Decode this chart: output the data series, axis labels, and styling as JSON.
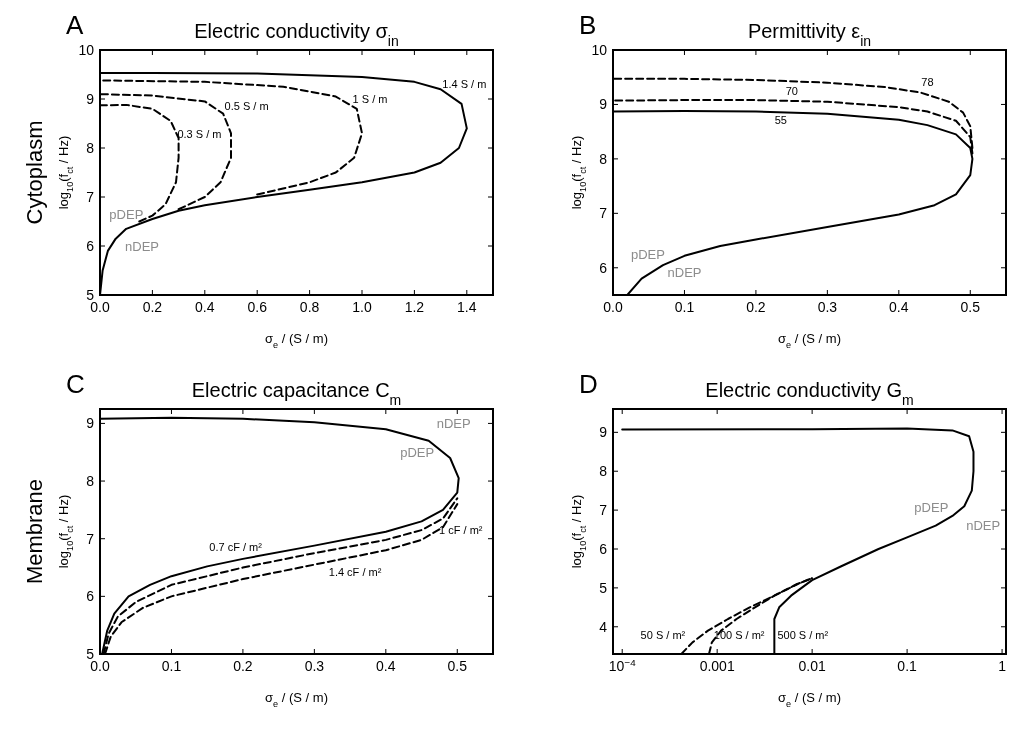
{
  "chart_data": [
    {
      "type": "line",
      "title": "Electric conductivity σ$_{in}$",
      "xlabel": "σ$_{e}$ / (S / m)",
      "ylabel": "log$_{10}$(f$_{ct}$ / Hz)",
      "xlim": [
        0,
        1.5
      ],
      "ylim": [
        5,
        10
      ],
      "xticks": [
        {
          "value": 0,
          "label": "0.0"
        },
        {
          "value": 0.2,
          "label": "0.2"
        },
        {
          "value": 0.4,
          "label": "0.4"
        },
        {
          "value": 0.6,
          "label": "0.6"
        },
        {
          "value": 0.8,
          "label": "0.8"
        },
        {
          "value": 1,
          "label": "1.0"
        },
        {
          "value": 1.2,
          "label": "1.2"
        },
        {
          "value": 1.4,
          "label": "1.4"
        }
      ],
      "yticks": [
        5,
        6,
        7,
        8,
        9,
        10
      ],
      "series": [
        {
          "name": "1.4 S / m",
          "color": "#000000",
          "line_style": "solid",
          "x": [
            0,
            0.01,
            0.03,
            0.06,
            0.1,
            0.2,
            0.3,
            0.4,
            0.6,
            0.8,
            1.0,
            1.2,
            1.3,
            1.37,
            1.4,
            1.38,
            1.3,
            1.2,
            1.0,
            0.6,
            0.2,
            0
          ],
          "values": [
            5,
            5.5,
            5.9,
            6.15,
            6.35,
            6.55,
            6.72,
            6.83,
            7.0,
            7.15,
            7.3,
            7.5,
            7.7,
            8.0,
            8.4,
            8.9,
            9.2,
            9.35,
            9.45,
            9.52,
            9.53,
            9.53
          ]
        },
        {
          "name": "1 S / m",
          "color": "#000000",
          "line_style": "dashed",
          "x": [
            0.6,
            0.8,
            0.9,
            0.97,
            1.0,
            0.98,
            0.9,
            0.7,
            0.4,
            0
          ],
          "values": [
            7.05,
            7.3,
            7.5,
            7.8,
            8.3,
            8.8,
            9.05,
            9.25,
            9.35,
            9.38
          ]
        },
        {
          "name": "0.5 S / m",
          "color": "#000000",
          "line_style": "dashed",
          "x": [
            0.3,
            0.4,
            0.46,
            0.5,
            0.5,
            0.47,
            0.4,
            0.2,
            0
          ],
          "values": [
            6.75,
            7.0,
            7.3,
            7.8,
            8.3,
            8.7,
            8.95,
            9.07,
            9.1
          ]
        },
        {
          "name": "0.3 S / m",
          "color": "#000000",
          "line_style": "dashed",
          "x": [
            0.15,
            0.2,
            0.25,
            0.29,
            0.3,
            0.3,
            0.27,
            0.2,
            0.1,
            0
          ],
          "values": [
            6.5,
            6.62,
            6.85,
            7.3,
            7.8,
            8.2,
            8.55,
            8.8,
            8.88,
            8.87
          ]
        }
      ],
      "annotations": [
        "A",
        "Cytoplasm",
        "pDEP",
        "nDEP"
      ]
    },
    {
      "type": "line",
      "title": "Permittivity ε$_{in}$",
      "xlabel": "σ$_{e}$ / (S / m)",
      "ylabel": "log$_{10}$(f$_{ct}$ / Hz)",
      "xlim": [
        0,
        0.55
      ],
      "ylim": [
        5.5,
        10
      ],
      "xticks": [
        {
          "value": 0,
          "label": "0.0"
        },
        0.1,
        0.2,
        0.3,
        0.4,
        0.5
      ],
      "yticks": [
        6,
        7,
        8,
        9,
        10
      ],
      "series": [
        {
          "name": "55",
          "color": "#000000",
          "line_style": "solid",
          "x": [
            0.02,
            0.04,
            0.07,
            0.1,
            0.15,
            0.2,
            0.3,
            0.4,
            0.45,
            0.48,
            0.5,
            0.503,
            0.5,
            0.48,
            0.44,
            0.4,
            0.3,
            0.2,
            0.1,
            0
          ],
          "values": [
            5.5,
            5.8,
            6.05,
            6.22,
            6.4,
            6.52,
            6.75,
            6.98,
            7.15,
            7.35,
            7.7,
            8.0,
            8.2,
            8.45,
            8.62,
            8.72,
            8.83,
            8.87,
            8.88,
            8.87
          ]
        },
        {
          "name": "70",
          "color": "#000000",
          "line_style": "dashed",
          "x": [
            0.503,
            0.5,
            0.48,
            0.44,
            0.4,
            0.3,
            0.2,
            0.1,
            0
          ],
          "values": [
            8.1,
            8.4,
            8.7,
            8.87,
            8.95,
            9.05,
            9.08,
            9.08,
            9.07
          ]
        },
        {
          "name": "78",
          "color": "#000000",
          "line_style": "dashed",
          "x": [
            0.503,
            0.5,
            0.49,
            0.47,
            0.43,
            0.38,
            0.3,
            0.2,
            0.1,
            0
          ],
          "values": [
            8.2,
            8.6,
            8.85,
            9.05,
            9.22,
            9.32,
            9.4,
            9.45,
            9.47,
            9.47
          ]
        }
      ],
      "annotations": [
        "B",
        "pDEP",
        "nDEP"
      ]
    },
    {
      "type": "line",
      "title": "Electric capacitance C$_{m}$",
      "xlabel": "σ$_{e}$ / (S / m)",
      "ylabel": "log$_{10}$(f$_{ct}$ / Hz)",
      "xlim": [
        0,
        0.55
      ],
      "ylim": [
        5,
        9.25
      ],
      "xticks": [
        {
          "value": 0,
          "label": "0.0"
        },
        0.1,
        0.2,
        0.3,
        0.4,
        0.5
      ],
      "yticks": [
        5,
        6,
        7,
        8,
        9
      ],
      "series": [
        {
          "name": "0.7 cF / m²",
          "color": "#000000",
          "line_style": "solid",
          "x": [
            0.003,
            0.01,
            0.02,
            0.04,
            0.07,
            0.1,
            0.15,
            0.2,
            0.3,
            0.4,
            0.45,
            0.48,
            0.5,
            0.502,
            0.49,
            0.46,
            0.4,
            0.3,
            0.2,
            0.1,
            0
          ],
          "values": [
            5,
            5.4,
            5.7,
            6.0,
            6.2,
            6.35,
            6.52,
            6.65,
            6.88,
            7.12,
            7.3,
            7.5,
            7.8,
            8.05,
            8.4,
            8.7,
            8.9,
            9.02,
            9.08,
            9.1,
            9.08
          ]
        },
        {
          "name": "1 cF / m²",
          "color": "#000000",
          "line_style": "dashed",
          "x": [
            0.005,
            0.012,
            0.025,
            0.05,
            0.1,
            0.2,
            0.3,
            0.4,
            0.45,
            0.48,
            0.5
          ],
          "values": [
            5,
            5.35,
            5.65,
            5.9,
            6.2,
            6.5,
            6.75,
            6.98,
            7.15,
            7.35,
            7.7
          ]
        },
        {
          "name": "1.4  cF / m²",
          "color": "#000000",
          "line_style": "dashed",
          "x": [
            0.007,
            0.015,
            0.03,
            0.06,
            0.1,
            0.2,
            0.3,
            0.4,
            0.45,
            0.48,
            0.5
          ],
          "values": [
            5,
            5.3,
            5.55,
            5.8,
            6.0,
            6.3,
            6.55,
            6.8,
            6.98,
            7.2,
            7.6
          ]
        }
      ],
      "annotations": [
        "C",
        "Membrane",
        "nDEP",
        "pDEP"
      ]
    },
    {
      "type": "line",
      "title": "Electric conductivity G$_{m}$",
      "xlabel": "σ$_{e}$ / (S / m)",
      "ylabel": "log$_{10}$(f$_{ct}$ / Hz)",
      "log": "x",
      "xlim": [
        8e-05,
        1.1
      ],
      "ylim": [
        3.3,
        9.6
      ],
      "xticks": [
        {
          "value": 0.0001,
          "label": "10$^{−4}$"
        },
        0.001,
        0.01,
        0.1,
        1
      ],
      "yticks": [
        4,
        5,
        6,
        7,
        8,
        9
      ],
      "series": [
        {
          "name": "500 S / m²",
          "color": "#000000",
          "line_style": "solid",
          "x": [
            0.004,
            0.004,
            0.0045,
            0.006,
            0.01,
            0.02,
            0.05,
            0.1,
            0.2,
            0.3,
            0.4,
            0.48,
            0.5,
            0.5,
            0.45,
            0.3,
            0.1,
            0.01,
            0.0001
          ],
          "values": [
            3.3,
            4.2,
            4.5,
            4.8,
            5.2,
            5.55,
            6.0,
            6.3,
            6.6,
            6.85,
            7.1,
            7.5,
            8.0,
            8.5,
            8.9,
            9.05,
            9.1,
            9.08,
            9.07
          ]
        },
        {
          "name": "100 S / m²",
          "color": "#000000",
          "line_style": "dashed",
          "x": [
            0.00082,
            0.00088,
            0.0011,
            0.0016,
            0.0025,
            0.004,
            0.007,
            0.01
          ],
          "values": [
            3.3,
            3.6,
            3.9,
            4.2,
            4.5,
            4.8,
            5.1,
            5.25
          ]
        },
        {
          "name": "50 S / m²",
          "color": "#000000",
          "line_style": "dashed",
          "x": [
            0.00042,
            0.00055,
            0.0008,
            0.0013,
            0.0022,
            0.004,
            0.007,
            0.01
          ],
          "values": [
            3.3,
            3.6,
            3.9,
            4.2,
            4.5,
            4.8,
            5.1,
            5.25
          ]
        }
      ],
      "annotations": [
        "D",
        "pDEP",
        "nDEP"
      ]
    }
  ]
}
